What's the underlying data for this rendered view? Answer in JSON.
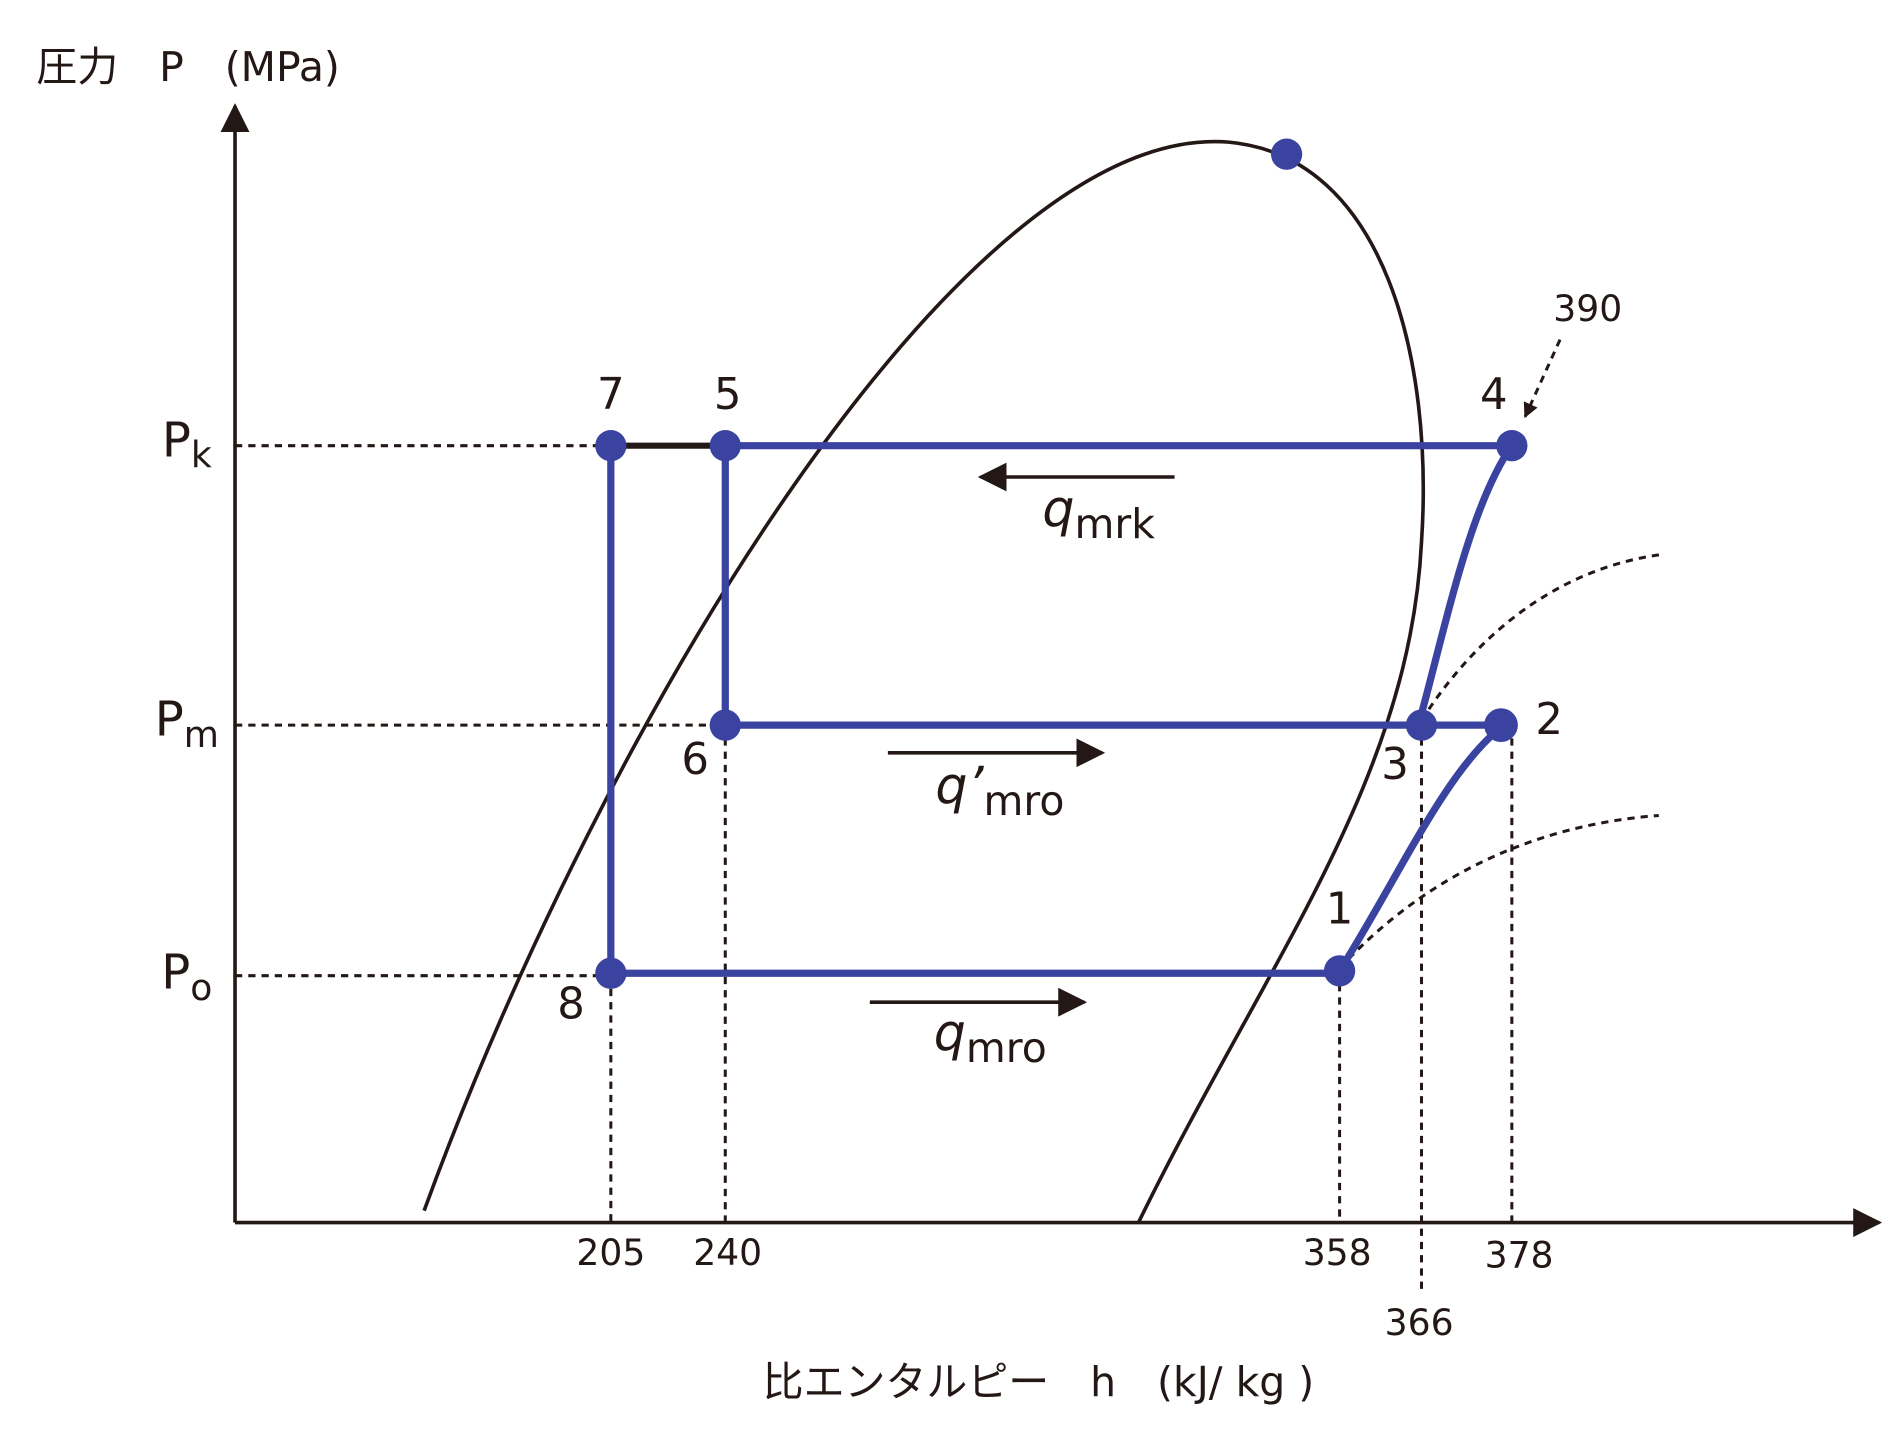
{
  "y_axis_label": "圧力　P　(MPa)",
  "x_axis_label": "比エンタルピー　h　(kJ/ kg )",
  "pressure_labels": [
    {
      "main": "P",
      "sub": "k"
    },
    {
      "main": "P",
      "sub": "m"
    },
    {
      "main": "P",
      "sub": "o"
    }
  ],
  "points": [
    "1",
    "2",
    "3",
    "4",
    "5",
    "6",
    "7",
    "8"
  ],
  "enthalpy_labels": [
    205,
    240,
    358,
    378,
    366,
    390
  ],
  "heat_labels": [
    {
      "main": "q",
      "sub": "mrk"
    },
    {
      "main": "q’",
      "sub": "mro"
    },
    {
      "main": "q",
      "sub": "mro"
    }
  ]
}
